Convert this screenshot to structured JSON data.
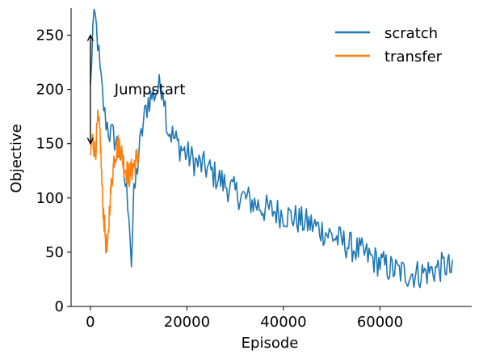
{
  "chart_data": {
    "type": "line",
    "title": "",
    "xlabel": "Episode",
    "ylabel": "Objective",
    "xlim": [
      -4000,
      79000
    ],
    "ylim": [
      0,
      275
    ],
    "xticks": [
      0,
      20000,
      40000,
      60000
    ],
    "yticks": [
      0,
      50,
      100,
      150,
      200,
      250
    ],
    "grid": false,
    "legend_position": "top-right",
    "annotation": {
      "text": "Jumpstart",
      "arrow_x": 0,
      "arrow_from": 150,
      "arrow_to": 250,
      "text_x": 5000,
      "text_y": 200
    },
    "series": [
      {
        "name": "scratch",
        "color": "#1f77b4",
        "sample_every": 250,
        "noise": 14,
        "x": [
          0,
          500,
          1000,
          1500,
          2000,
          3000,
          4000,
          5000,
          6000,
          7000,
          8000,
          8500,
          9000,
          10000,
          11000,
          12000,
          13000,
          14000,
          15000,
          16000,
          18000,
          20000,
          22000,
          24000,
          26000,
          28000,
          30000,
          32000,
          34000,
          36000,
          38000,
          40000,
          42000,
          44000,
          46000,
          48000,
          50000,
          52000,
          54000,
          56000,
          58000,
          60000,
          62000,
          64000,
          66000,
          68000,
          70000,
          72000,
          74000,
          75000
        ],
        "y": [
          200,
          255,
          265,
          245,
          215,
          175,
          160,
          155,
          145,
          120,
          90,
          40,
          100,
          140,
          170,
          190,
          195,
          200,
          205,
          165,
          150,
          140,
          132,
          128,
          120,
          112,
          105,
          100,
          95,
          90,
          88,
          85,
          82,
          78,
          75,
          70,
          65,
          60,
          55,
          50,
          45,
          40,
          35,
          32,
          30,
          30,
          32,
          35,
          38,
          30
        ]
      },
      {
        "name": "transfer",
        "color": "#ff7f0e",
        "sample_every": 80,
        "noise": 12,
        "x": [
          0,
          300,
          700,
          1000,
          1500,
          2000,
          2500,
          3000,
          3500,
          4000,
          5000,
          6000,
          7000,
          8000,
          9000,
          10000
        ],
        "y": [
          135,
          155,
          150,
          140,
          170,
          160,
          100,
          70,
          45,
          95,
          140,
          150,
          130,
          120,
          130,
          140
        ]
      }
    ]
  }
}
